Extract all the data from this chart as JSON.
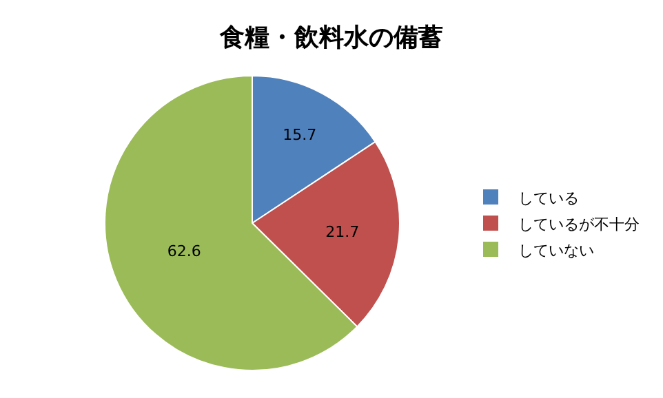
{
  "chart_data": {
    "type": "pie",
    "title": "食糧・飲料水の備蓄",
    "categories": [
      "している",
      "しているが不十分",
      "していない"
    ],
    "values": [
      15.7,
      21.7,
      62.6
    ],
    "colors": [
      "#4f81bd",
      "#c0504d",
      "#9bbb59"
    ],
    "data_labels": true,
    "legend": "right"
  }
}
